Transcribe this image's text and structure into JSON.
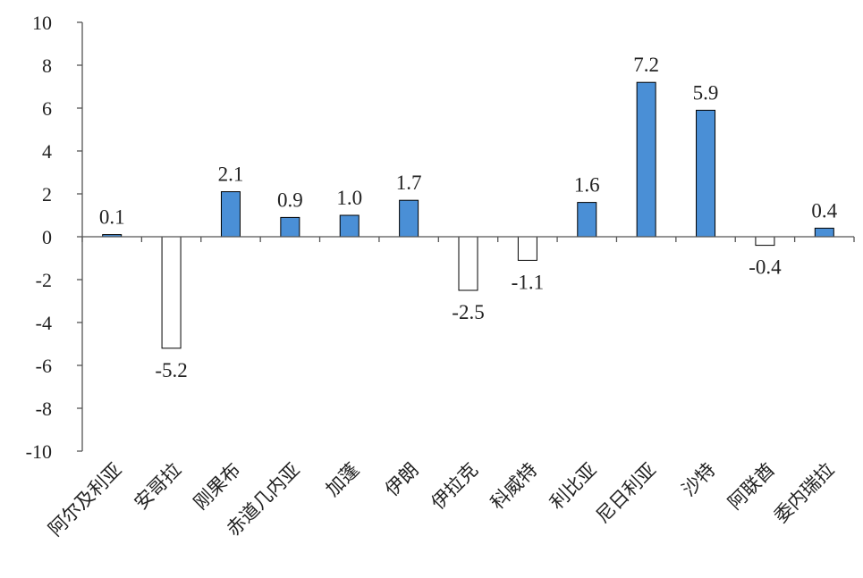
{
  "chart_data": {
    "type": "bar",
    "categories": [
      "阿尔及利亚",
      "安哥拉",
      "刚果布",
      "赤道几内亚",
      "加蓬",
      "伊朗",
      "伊拉克",
      "科威特",
      "利比亚",
      "尼日利亚",
      "沙特",
      "阿联酋",
      "委内瑞拉"
    ],
    "values": [
      0.1,
      -5.2,
      2.1,
      0.9,
      1.0,
      1.7,
      -2.5,
      -1.1,
      1.6,
      7.2,
      5.9,
      -0.4,
      0.4
    ],
    "data_labels": [
      "0.1",
      "-5.2",
      "2.1",
      "0.9",
      "1.0",
      "1.7",
      "-2.5",
      "-1.1",
      "1.6",
      "7.2",
      "5.9",
      "-0.4",
      "0.4"
    ],
    "ylim": [
      -10,
      10
    ],
    "yticks": [
      -10,
      -8,
      -6,
      -4,
      -2,
      0,
      2,
      4,
      6,
      8,
      10
    ],
    "ytick_labels": [
      "-10",
      "-8",
      "-6",
      "-4",
      "-2",
      "0",
      "2",
      "4",
      "6",
      "8",
      "10"
    ],
    "grid": false,
    "colors": {
      "positive": "#4a8fd6",
      "negative": "#ffffff",
      "border": "#000000"
    }
  }
}
